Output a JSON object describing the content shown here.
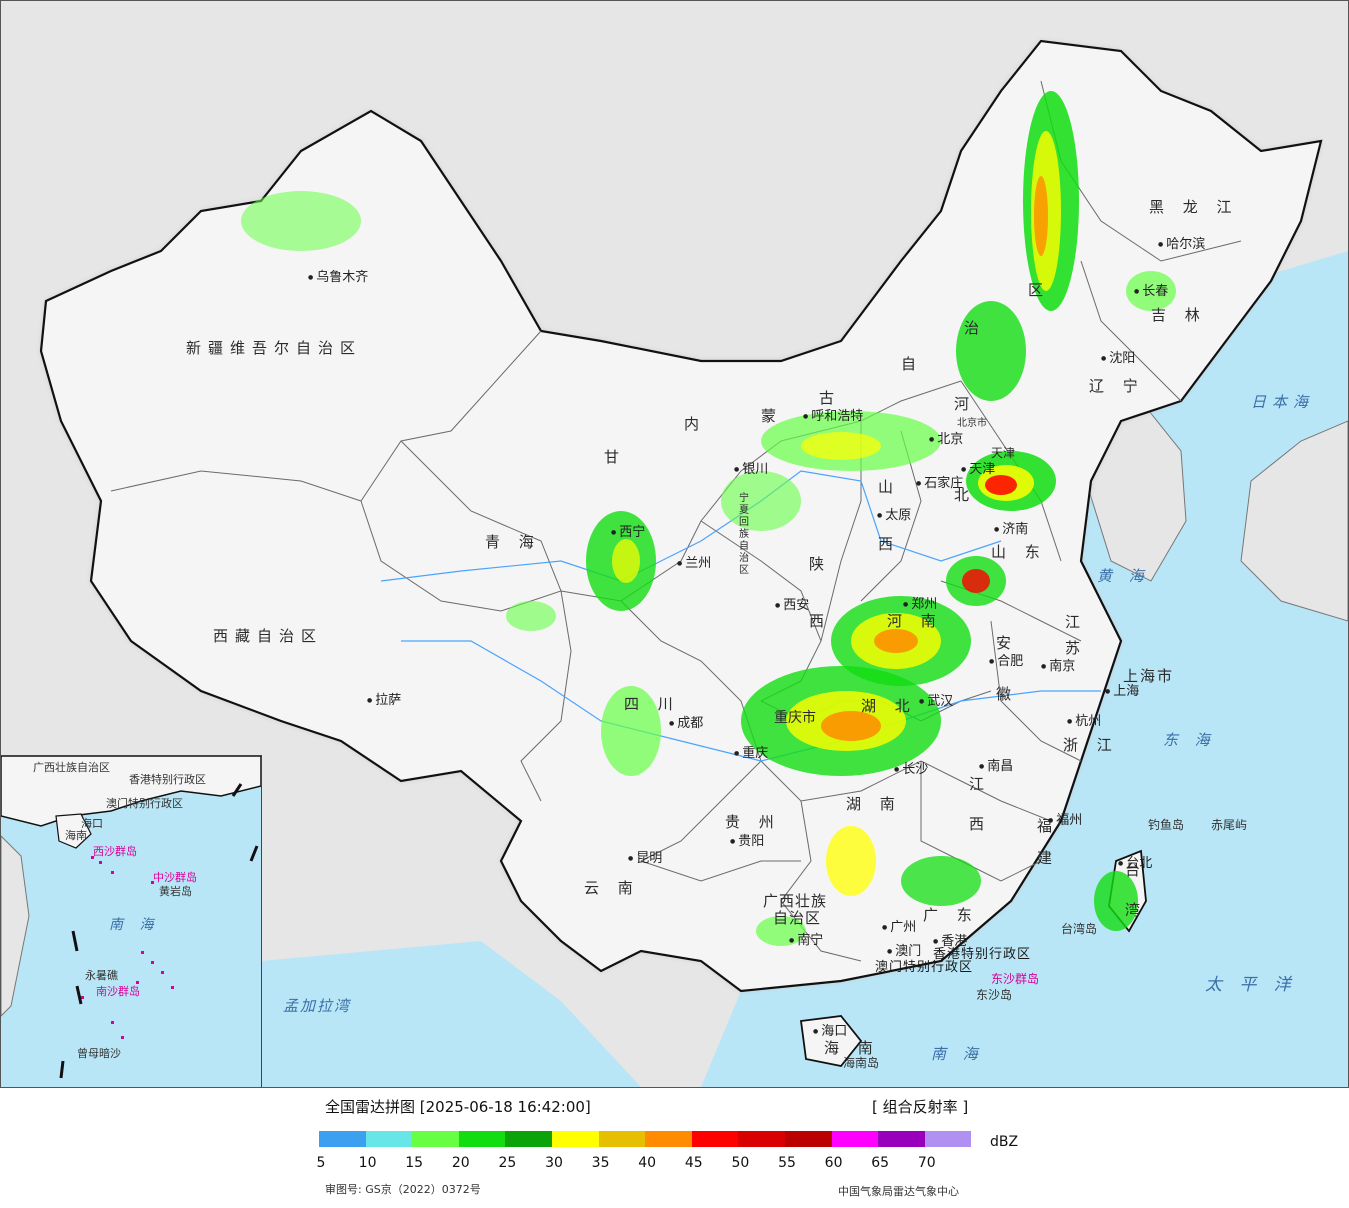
{
  "map": {
    "colors": {
      "background": "#e6e6e6",
      "land": "#f4f4f4",
      "sea": "#b9e6f7",
      "border": "#111111",
      "province_border": "#6a6a6a"
    },
    "provinces": [
      {
        "id": "xinjiang",
        "text": "新疆维吾尔自治区",
        "cls": "prov"
      },
      {
        "id": "xizang",
        "text": "西藏自治区",
        "cls": "prov"
      },
      {
        "id": "qinghai",
        "text": "青   海",
        "cls": "prov"
      },
      {
        "id": "gansu",
        "text": "甘",
        "cls": "provv"
      },
      {
        "id": "neimenggu-1",
        "text": "内",
        "cls": "provv"
      },
      {
        "id": "neimenggu-2",
        "text": "蒙",
        "cls": "provv"
      },
      {
        "id": "neimenggu-3",
        "text": "古",
        "cls": "provv"
      },
      {
        "id": "neimenggu-4",
        "text": "自",
        "cls": "provv"
      },
      {
        "id": "neimenggu-5",
        "text": "治",
        "cls": "provv"
      },
      {
        "id": "neimenggu-6",
        "text": "区",
        "cls": "provv"
      },
      {
        "id": "heilongjiang",
        "text": "黑 龙 江",
        "cls": "prov"
      },
      {
        "id": "jilin",
        "text": "吉 林",
        "cls": "prov"
      },
      {
        "id": "liaoning",
        "text": "辽 宁",
        "cls": "prov"
      },
      {
        "id": "hebei-1",
        "text": "河",
        "cls": "provv"
      },
      {
        "id": "hebei-2",
        "text": "北",
        "cls": "provv"
      },
      {
        "id": "shanxi-1",
        "text": "山",
        "cls": "provv"
      },
      {
        "id": "shanxi-2",
        "text": "西",
        "cls": "provv"
      },
      {
        "id": "shandong",
        "text": "山 东",
        "cls": "prov"
      },
      {
        "id": "henan",
        "text": "河 南",
        "cls": "prov"
      },
      {
        "id": "shaanxi-1",
        "text": "陕",
        "cls": "provv"
      },
      {
        "id": "shaanxi-2",
        "text": "西",
        "cls": "provv"
      },
      {
        "id": "ningxia",
        "text": "宁夏回族自治区",
        "cls": "provv"
      },
      {
        "id": "sichuan",
        "text": "四   川",
        "cls": "prov"
      },
      {
        "id": "chongqing",
        "text": "重庆市",
        "cls": "provv"
      },
      {
        "id": "hubei",
        "text": "湖 北",
        "cls": "prov"
      },
      {
        "id": "hunan",
        "text": "湖 南",
        "cls": "prov"
      },
      {
        "id": "anhui-1",
        "text": "安",
        "cls": "provv"
      },
      {
        "id": "anhui-2",
        "text": "徽",
        "cls": "provv"
      },
      {
        "id": "jiangsu-1",
        "text": "江",
        "cls": "provv"
      },
      {
        "id": "jiangsu-2",
        "text": "苏",
        "cls": "provv"
      },
      {
        "id": "shanghai",
        "text": "上海市",
        "cls": "prov"
      },
      {
        "id": "zhejiang",
        "text": "浙 江",
        "cls": "prov"
      },
      {
        "id": "jiangxi-1",
        "text": "江",
        "cls": "provv"
      },
      {
        "id": "jiangxi-2",
        "text": "西",
        "cls": "provv"
      },
      {
        "id": "fujian-1",
        "text": "福",
        "cls": "provv"
      },
      {
        "id": "fujian-2",
        "text": "建",
        "cls": "provv"
      },
      {
        "id": "guizhou",
        "text": "贵 州",
        "cls": "prov"
      },
      {
        "id": "yunnan",
        "text": "云 南",
        "cls": "prov"
      },
      {
        "id": "guangxi-1",
        "text": "广西壮族",
        "cls": "prov"
      },
      {
        "id": "guangxi-2",
        "text": "自治区",
        "cls": "prov"
      },
      {
        "id": "guangdong",
        "text": "广 东",
        "cls": "prov"
      },
      {
        "id": "hainan",
        "text": "海 南",
        "cls": "prov"
      },
      {
        "id": "taiwan-1",
        "text": "台",
        "cls": "provv"
      },
      {
        "id": "taiwan-2",
        "text": "湾",
        "cls": "provv"
      },
      {
        "id": "hongkong",
        "text": "香港特别行政区",
        "cls": "sar"
      },
      {
        "id": "macau",
        "text": "澳门特别行政区",
        "cls": "sar"
      },
      {
        "id": "tianjin",
        "text": "天津",
        "cls": "provv"
      },
      {
        "id": "beijing",
        "text": "北京市",
        "cls": "island"
      }
    ],
    "cities": [
      {
        "id": "urumqi",
        "text": "乌鲁木齐"
      },
      {
        "id": "lhasa",
        "text": "拉萨"
      },
      {
        "id": "xining",
        "text": "西宁"
      },
      {
        "id": "lanzhou",
        "text": "兰州"
      },
      {
        "id": "yinchuan",
        "text": "银川"
      },
      {
        "id": "hohhot",
        "text": "呼和浩特"
      },
      {
        "id": "harbin",
        "text": "哈尔滨"
      },
      {
        "id": "changchun",
        "text": "长春"
      },
      {
        "id": "shenyang",
        "text": "沈阳"
      },
      {
        "id": "beijing-c",
        "text": "北京"
      },
      {
        "id": "tianjin-c",
        "text": "天津"
      },
      {
        "id": "shijiazhuang",
        "text": "石家庄"
      },
      {
        "id": "taiyuan",
        "text": "太原"
      },
      {
        "id": "jinan",
        "text": "济南"
      },
      {
        "id": "zhengzhou",
        "text": "郑州"
      },
      {
        "id": "xian",
        "text": "西安"
      },
      {
        "id": "hefei",
        "text": "合肥"
      },
      {
        "id": "nanjing",
        "text": "南京"
      },
      {
        "id": "shanghai-c",
        "text": "上海"
      },
      {
        "id": "hangzhou",
        "text": "杭州"
      },
      {
        "id": "wuhan",
        "text": "武汉"
      },
      {
        "id": "chengdu",
        "text": "成都"
      },
      {
        "id": "chongqing-c",
        "text": "重庆"
      },
      {
        "id": "changsha",
        "text": "长沙"
      },
      {
        "id": "nanchang",
        "text": "南昌"
      },
      {
        "id": "fuzhou",
        "text": "福州"
      },
      {
        "id": "guiyang",
        "text": "贵阳"
      },
      {
        "id": "kunming",
        "text": "昆明"
      },
      {
        "id": "nanning",
        "text": "南宁"
      },
      {
        "id": "guangzhou",
        "text": "广州"
      },
      {
        "id": "hongkong-c",
        "text": "香港"
      },
      {
        "id": "macau-c",
        "text": "澳门"
      },
      {
        "id": "haikou",
        "text": "海口"
      },
      {
        "id": "taibei",
        "text": "台北"
      }
    ],
    "seas": [
      {
        "id": "japan-sea",
        "text": "日本海"
      },
      {
        "id": "yellow-sea",
        "text": "黄 海"
      },
      {
        "id": "east-sea",
        "text": "东 海"
      },
      {
        "id": "pacific",
        "text": "太 平 洋"
      },
      {
        "id": "south-sea",
        "text": "南   海"
      },
      {
        "id": "bengal",
        "text": "孟加拉湾"
      }
    ],
    "islands": [
      {
        "id": "diaoyu",
        "text": "钓鱼岛"
      },
      {
        "id": "chiwei",
        "text": "赤尾屿"
      },
      {
        "id": "dongsha",
        "text": "东沙群岛"
      },
      {
        "id": "dongsha2",
        "text": "东沙岛"
      },
      {
        "id": "hainan-island",
        "text": "海南岛"
      },
      {
        "id": "taiwan-island",
        "text": "台湾岛"
      }
    ],
    "inset": {
      "labels": [
        {
          "id": "i-guangxi",
          "text": "广西壮族自治区"
        },
        {
          "id": "i-hk",
          "text": "香港特别行政区"
        },
        {
          "id": "i-macau",
          "text": "澳门特别行政区"
        },
        {
          "id": "i-haikou",
          "text": "海口"
        },
        {
          "id": "i-hainan",
          "text": "海南"
        },
        {
          "id": "i-xisha",
          "text": "西沙群岛"
        },
        {
          "id": "i-zhongsha",
          "text": "中沙群岛"
        },
        {
          "id": "i-huangyan",
          "text": "黄岩岛"
        },
        {
          "id": "i-yongshu",
          "text": "永暑礁"
        },
        {
          "id": "i-nansha",
          "text": "南沙群岛"
        },
        {
          "id": "i-zengmu",
          "text": "曾母暗沙"
        },
        {
          "id": "i-nanhai",
          "text": "南  海"
        }
      ]
    }
  },
  "legend": {
    "title": "全国雷达拼图 [2025-06-18 16:42:00]",
    "product": "[ 组合反射率 ]",
    "unit": "dBZ",
    "scale": [
      {
        "value": "5",
        "color": "#3d9ff0"
      },
      {
        "value": "10",
        "color": "#66e6e6"
      },
      {
        "value": "15",
        "color": "#66ff44"
      },
      {
        "value": "20",
        "color": "#11dd11"
      },
      {
        "value": "25",
        "color": "#0aa40a"
      },
      {
        "value": "30",
        "color": "#ffff00"
      },
      {
        "value": "35",
        "color": "#e6c000"
      },
      {
        "value": "40",
        "color": "#ff8c00"
      },
      {
        "value": "45",
        "color": "#ff0000"
      },
      {
        "value": "50",
        "color": "#d80000"
      },
      {
        "value": "55",
        "color": "#bb0000"
      },
      {
        "value": "60",
        "color": "#ff00ff"
      },
      {
        "value": "65",
        "color": "#9900bb"
      },
      {
        "value": "70",
        "color": "#b090f0"
      }
    ],
    "approval": "审图号: GS京（2022）0372号",
    "source": "中国气象局雷达气象中心"
  }
}
